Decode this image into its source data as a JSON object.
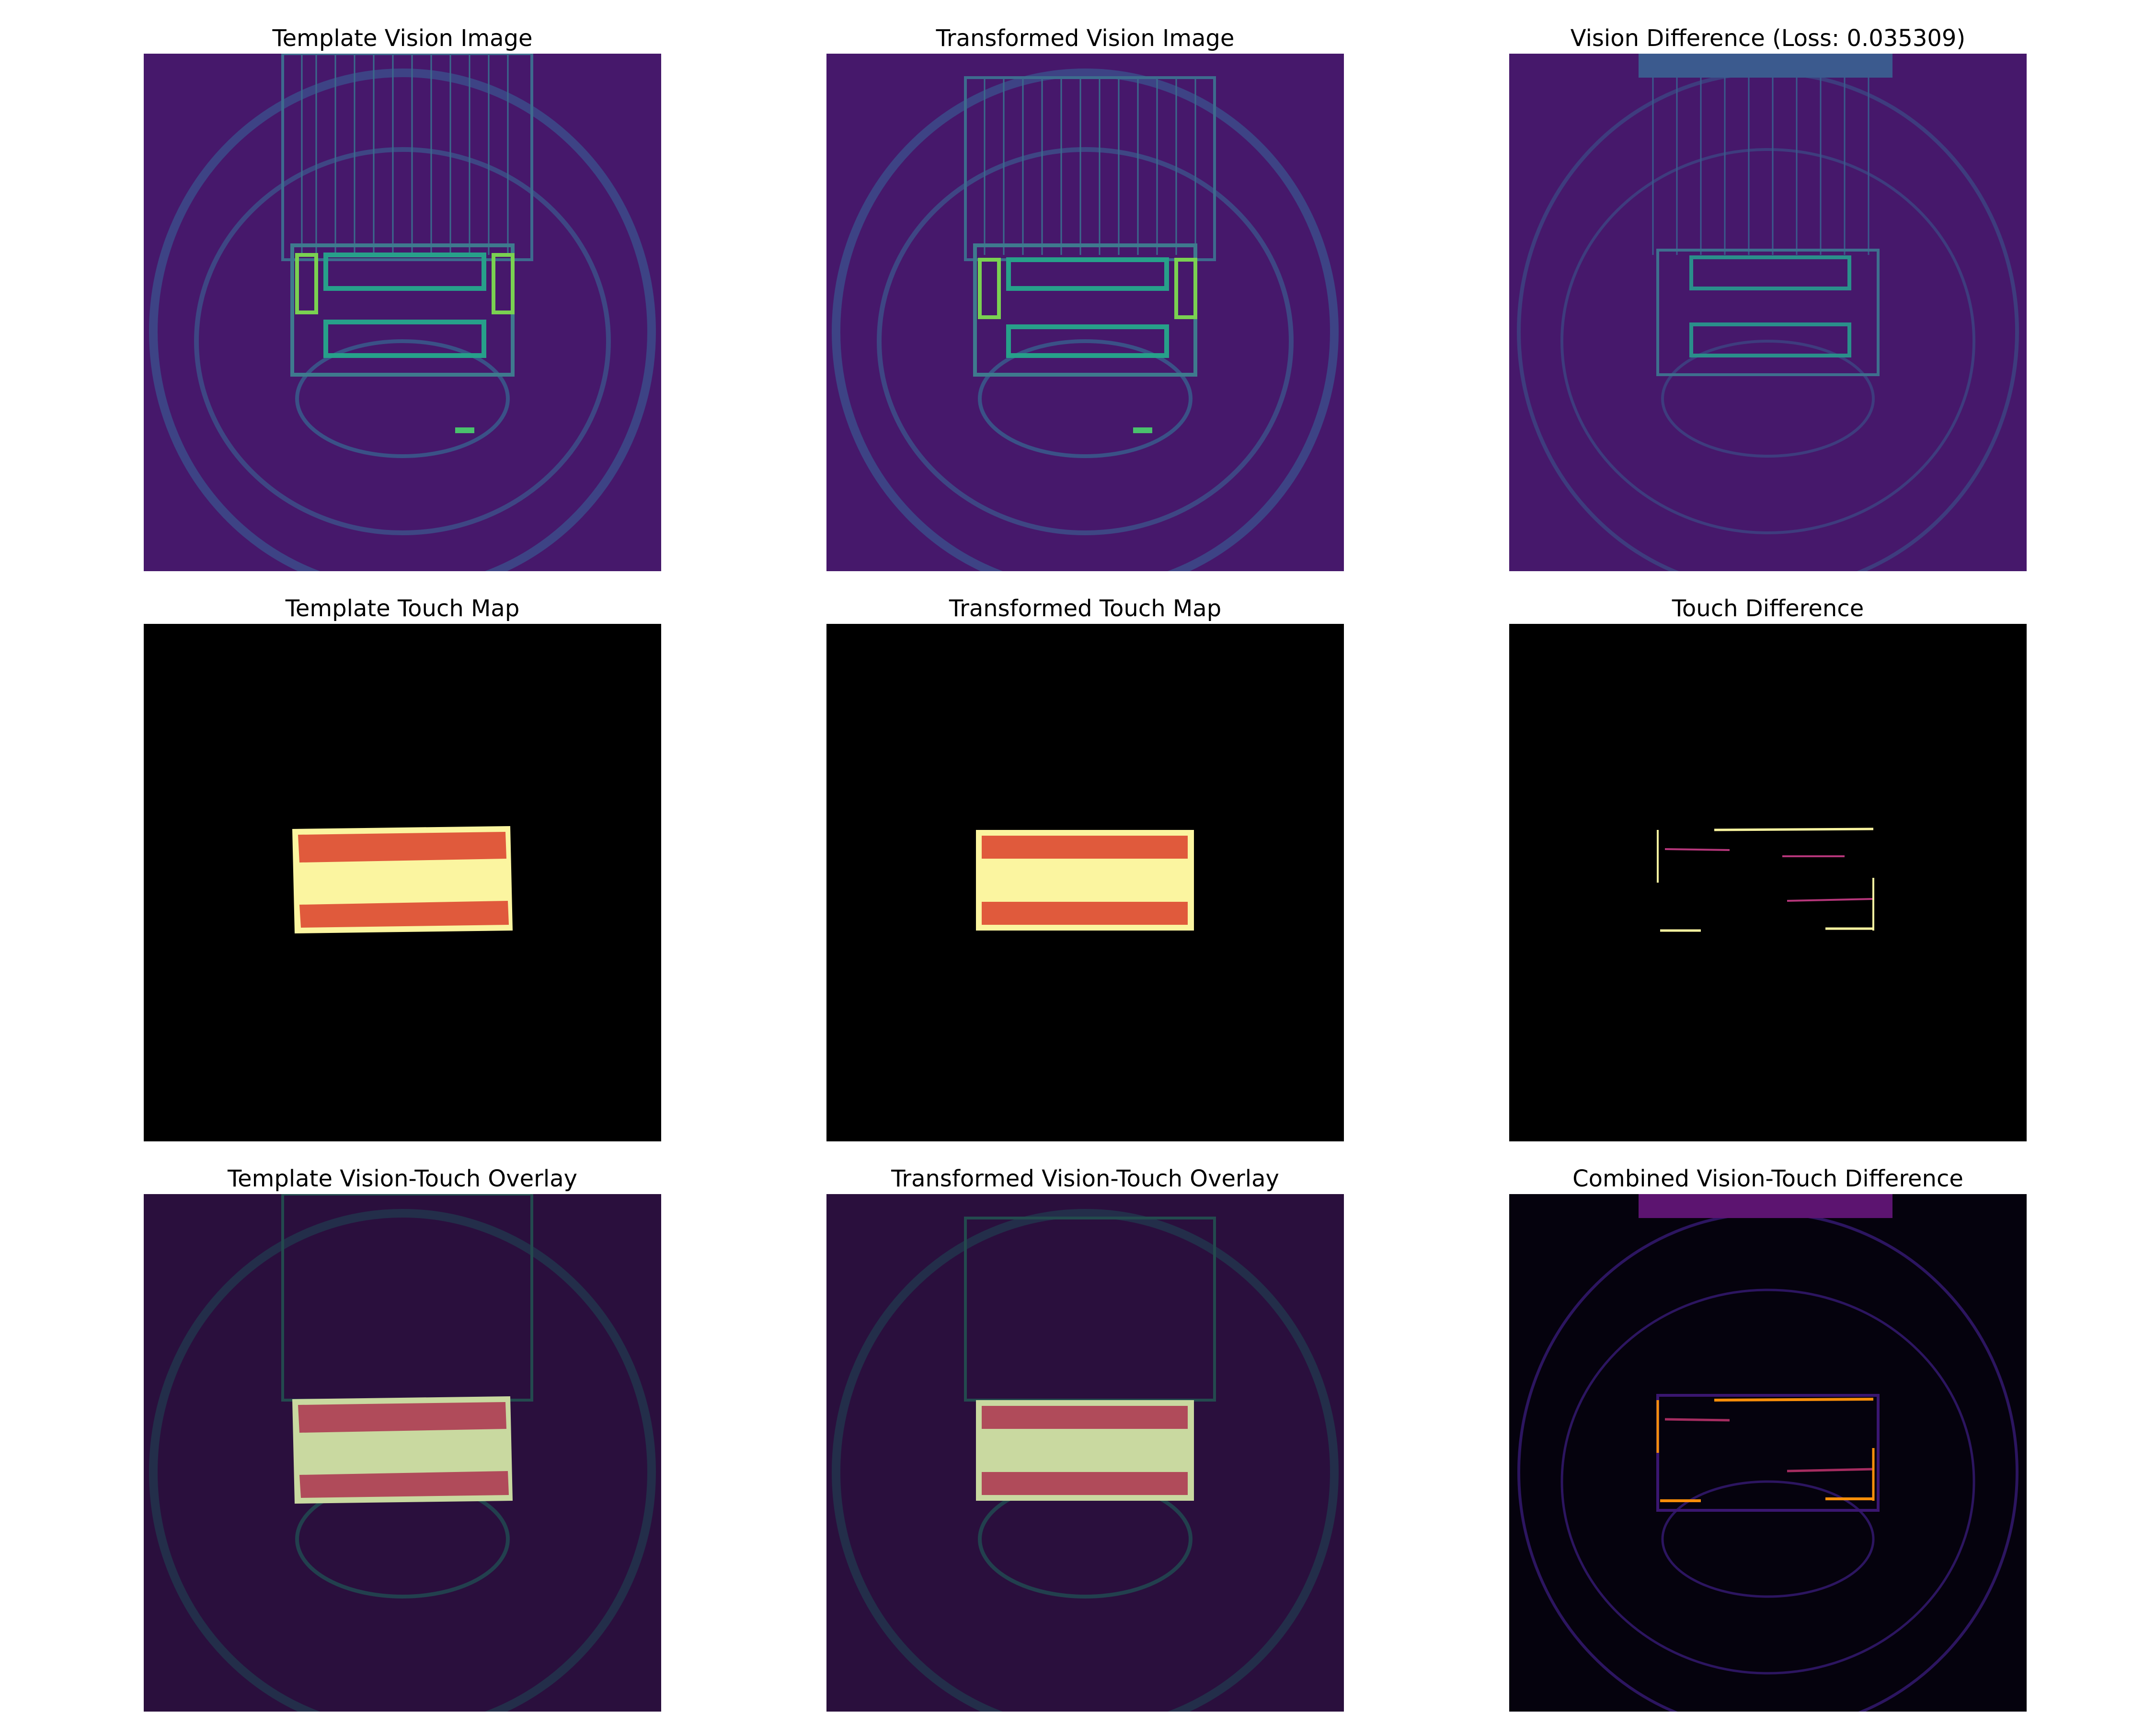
{
  "figure": {
    "colors": {
      "viridis_dark": "#440154",
      "viridis_teal": "#21918c",
      "viridis_yellow": "#fde725",
      "touch_red": "#e05a3c",
      "touch_yellow": "#fbf5a0",
      "inferno_dark": "#000004",
      "inferno_orange": "#fca50a"
    },
    "panels": [
      {
        "title": "Template Vision Image",
        "cmap": "viridis"
      },
      {
        "title": "Transformed Vision Image",
        "cmap": "viridis"
      },
      {
        "title": "Vision Difference (Loss: 0.035309)",
        "cmap": "viridis"
      },
      {
        "title": "Template Touch Map",
        "cmap": "black"
      },
      {
        "title": "Transformed Touch Map",
        "cmap": "black"
      },
      {
        "title": "Touch Difference",
        "cmap": "black"
      },
      {
        "title": "Template Vision-Touch Overlay",
        "cmap": "viridis-dark"
      },
      {
        "title": "Transformed Vision-Touch Overlay",
        "cmap": "viridis-dark"
      },
      {
        "title": "Combined Vision-Touch Difference",
        "cmap": "inferno"
      }
    ]
  }
}
